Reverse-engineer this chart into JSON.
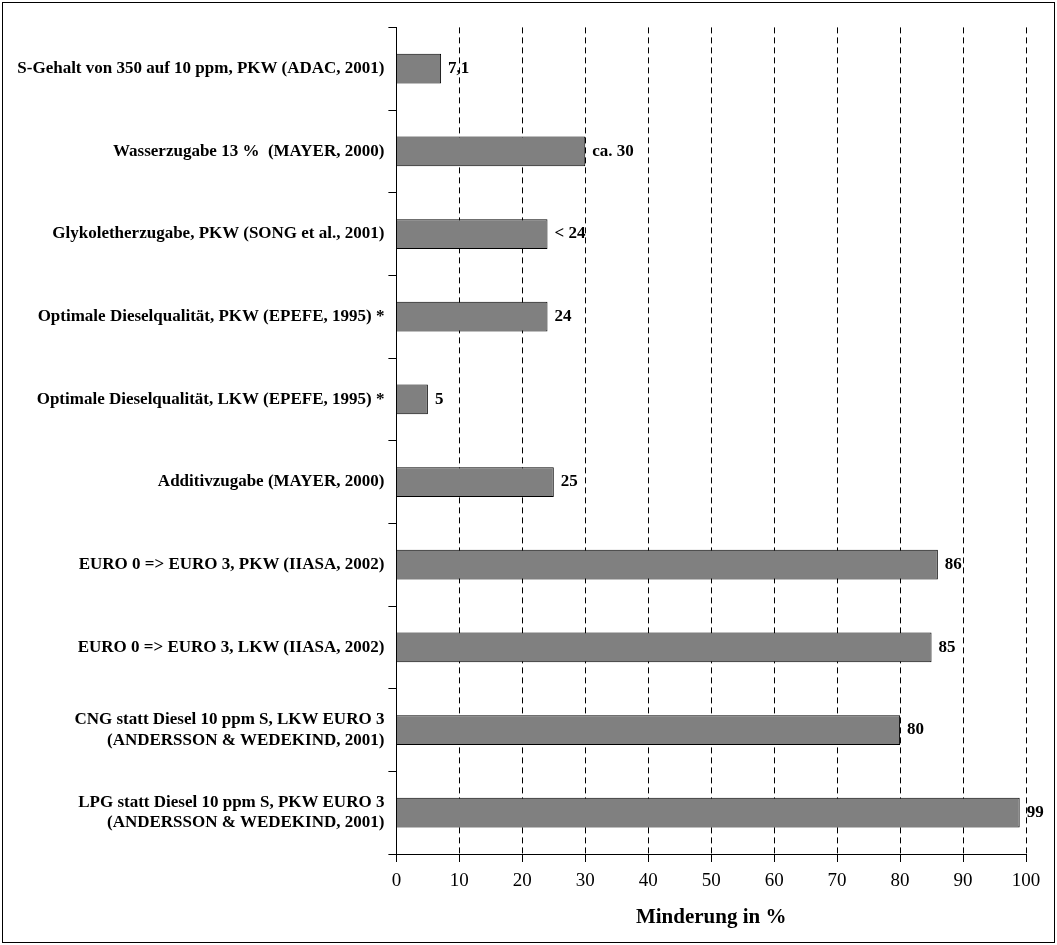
{
  "chart_data": {
    "type": "bar",
    "orientation": "horizontal",
    "xlabel": "Minderung in %",
    "categories": [
      "S-Gehalt von 350 auf 10 ppm, PKW (ADAC, 2001)",
      "Wasserzugabe 13 %  (MAYER, 2000)",
      "Glykoletherzugabe, PKW (SONG et al., 2001)",
      "Optimale Dieselqualität, PKW (EPEFE, 1995) *",
      "Optimale Dieselqualität, LKW (EPEFE, 1995) *",
      "Additivzugabe (MAYER, 2000)",
      "EURO 0 => EURO 3, PKW (IIASA, 2002)",
      "EURO 0 => EURO 3, LKW (IIASA, 2002)",
      "CNG statt Diesel 10 ppm S, LKW EURO 3\n(ANDERSSON & WEDEKIND, 2001)",
      "LPG statt Diesel 10 ppm S, PKW EURO 3\n(ANDERSSON & WEDEKIND, 2001)"
    ],
    "values": [
      7.1,
      30,
      24,
      24,
      5,
      25,
      86,
      85,
      80,
      99
    ],
    "value_labels": [
      "7,1",
      "ca. 30",
      "< 24",
      "24",
      "5",
      "25",
      "86",
      "85",
      "80",
      "99"
    ],
    "color": "#808080",
    "xlim": [
      0,
      100
    ],
    "xticks": [
      0,
      10,
      20,
      30,
      40,
      50,
      60,
      70,
      80,
      90,
      100
    ],
    "grid": "x",
    "legend": false
  }
}
